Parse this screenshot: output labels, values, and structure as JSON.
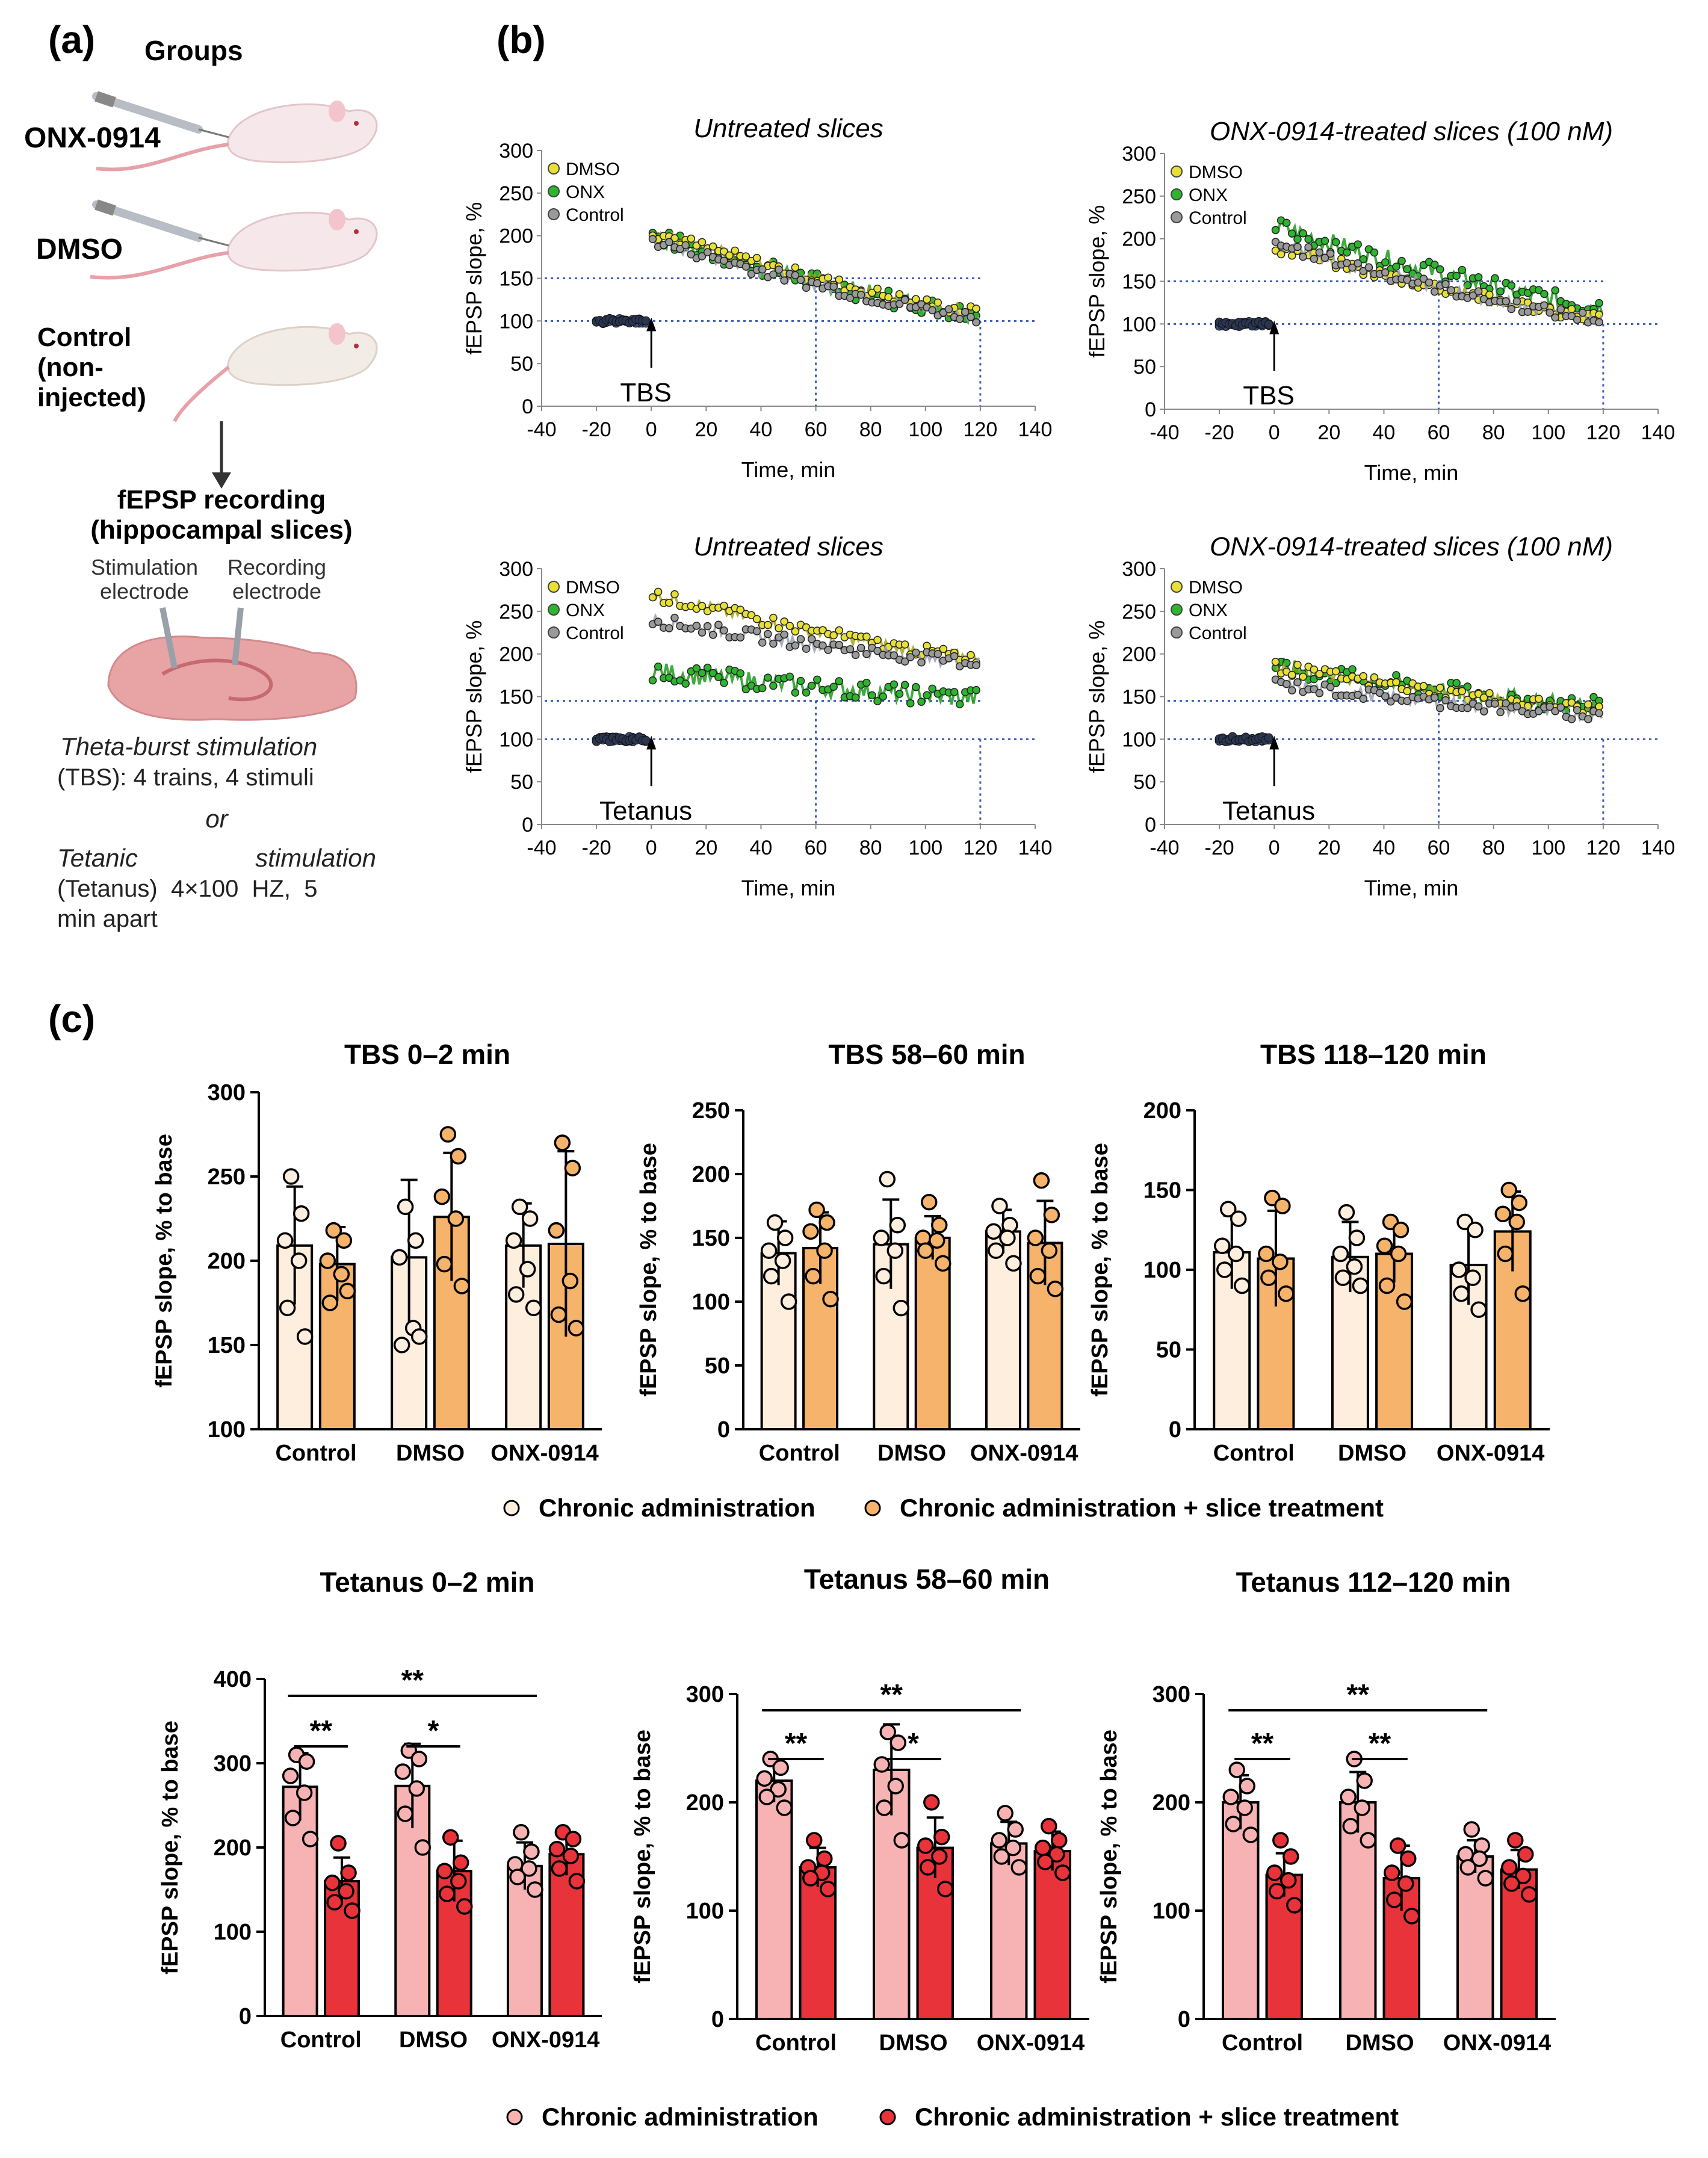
{
  "panels": {
    "a": "(a)",
    "b": "(b)",
    "c": "(c)"
  },
  "panel_a": {
    "groups_title": "Groups",
    "group_onx": "ONX-0914",
    "group_dmso": "DMSO",
    "group_control_1": "Control",
    "group_control_2": "(non-",
    "group_control_3": "injected)",
    "recording_1": "fEPSP recording",
    "recording_2": "(hippocampal slices)",
    "stim_1": "Stimulation",
    "stim_2": "electrode",
    "rec_1": "Recording",
    "rec_2": "electrode",
    "tbs_1": "Theta-burst stimulation",
    "tbs_2": "(TBS): 4 trains, 4 stimuli",
    "or": "or",
    "tet_1a": "Tetanic",
    "tet_1b": "stimulation",
    "tet_2": "(Tetanus)  4×100  HZ,  5",
    "tet_3": "min apart"
  },
  "panel_b": {
    "xlabel": "Time, min",
    "ylabel": "fEPSP slope, %",
    "xticks": [
      "-40",
      "-20",
      "0",
      "20",
      "40",
      "60",
      "80",
      "100",
      "120",
      "140"
    ],
    "yticks": [
      "0",
      "50",
      "100",
      "150",
      "200",
      "250",
      "300"
    ],
    "legend": [
      "DMSO",
      "ONX",
      "Control"
    ],
    "legend_colors": [
      "#e8e034",
      "#2db52d",
      "#9a9a9a"
    ],
    "series_colors": [
      "#a6a61e",
      "#1f9a1f",
      "#9aa0b0"
    ],
    "plots": [
      {
        "title": "Untreated slices",
        "stim": "TBS"
      },
      {
        "title": "ONX-0914-treated slices (100 nM)",
        "stim": "TBS"
      },
      {
        "title": "Untreated slices",
        "stim": "Tetanus"
      },
      {
        "title": "ONX-0914-treated slices (100 nM)",
        "stim": "Tetanus"
      }
    ]
  },
  "panel_c": {
    "ylabel": "fEPSP slope, % to base",
    "legend_tbs": [
      "Chronic administration",
      "Chronic administration + slice treatment"
    ],
    "legend_tet": [
      "Chronic administration",
      "Chronic administration + slice treatment"
    ],
    "colors": {
      "tbs_light": "#fdeedd",
      "tbs_dark": "#f5b36b",
      "tet_light": "#f7b3b3",
      "tet_dark": "#e8333a"
    }
  },
  "chart_data": [
    {
      "type": "line",
      "title": "Untreated slices",
      "xlabel": "Time, min",
      "ylabel": "fEPSP slope, %",
      "xlim": [
        -40,
        140
      ],
      "ylim": [
        0,
        300
      ],
      "annotation": "TBS",
      "series": [
        {
          "name": "DMSO",
          "baseline": 100,
          "start": 205,
          "end": 110
        },
        {
          "name": "ONX",
          "baseline": 100,
          "start": 200,
          "end": 108
        },
        {
          "name": "Control",
          "baseline": 100,
          "start": 195,
          "end": 105
        }
      ],
      "reference_lines": {
        "y": [
          100,
          150
        ],
        "x": [
          60,
          120
        ]
      }
    },
    {
      "type": "line",
      "title": "ONX-0914-treated slices (100 nM)",
      "xlabel": "Time, min",
      "ylabel": "fEPSP slope, %",
      "xlim": [
        -40,
        140
      ],
      "ylim": [
        0,
        300
      ],
      "annotation": "TBS",
      "series": [
        {
          "name": "DMSO",
          "baseline": 100,
          "start": 190,
          "end": 108
        },
        {
          "name": "ONX",
          "baseline": 100,
          "start": 215,
          "end": 120
        },
        {
          "name": "Control",
          "baseline": 100,
          "start": 195,
          "end": 105
        }
      ],
      "reference_lines": {
        "y": [
          100,
          150
        ],
        "x": [
          60,
          120
        ]
      }
    },
    {
      "type": "line",
      "title": "Untreated slices",
      "xlabel": "Time, min",
      "ylabel": "fEPSP slope, %",
      "xlim": [
        -40,
        140
      ],
      "ylim": [
        0,
        300
      ],
      "annotation": "Tetanus",
      "series": [
        {
          "name": "DMSO",
          "baseline": 100,
          "start": 270,
          "end": 195
        },
        {
          "name": "ONX",
          "baseline": 100,
          "start": 180,
          "end": 148
        },
        {
          "name": "Control",
          "baseline": 100,
          "start": 240,
          "end": 190
        }
      ],
      "reference_lines": {
        "y": [
          100,
          145
        ],
        "x": [
          60,
          120
        ]
      }
    },
    {
      "type": "line",
      "title": "ONX-0914-treated slices (100 nM)",
      "xlabel": "Time, min",
      "ylabel": "fEPSP slope, %",
      "xlim": [
        -40,
        140
      ],
      "ylim": [
        0,
        300
      ],
      "annotation": "Tetanus",
      "series": [
        {
          "name": "DMSO",
          "baseline": 100,
          "start": 185,
          "end": 135
        },
        {
          "name": "ONX",
          "baseline": 100,
          "start": 185,
          "end": 138
        },
        {
          "name": "Control",
          "baseline": 100,
          "start": 165,
          "end": 128
        }
      ],
      "reference_lines": {
        "y": [
          100,
          145
        ],
        "x": [
          60,
          120
        ]
      }
    },
    {
      "type": "bar",
      "title": "TBS 0–2 min",
      "ylabel": "fEPSP slope, % to base",
      "ylim": [
        100,
        300
      ],
      "yticks": [
        100,
        150,
        200,
        250,
        300
      ],
      "categories": [
        "Control",
        "DMSO",
        "ONX-0914"
      ],
      "series": [
        {
          "name": "Chronic administration",
          "values": [
            209,
            202,
            209
          ],
          "sd": [
            35,
            46,
            25
          ],
          "points": [
            [
              250,
              228,
              212,
              200,
              172,
              155
            ],
            [
              232,
              212,
              202,
              160,
              150,
              155
            ],
            [
              232,
              225,
              212,
              195,
              180,
              172
            ]
          ]
        },
        {
          "name": "Chronic administration + slice treatment",
          "values": [
            198,
            226,
            210
          ],
          "sd": [
            22,
            38,
            55
          ],
          "points": [
            [
              218,
              212,
              200,
              192,
              175,
              182
            ],
            [
              275,
              262,
              238,
              225,
              198,
              185
            ],
            [
              270,
              255,
              218,
              188,
              168,
              160
            ]
          ]
        }
      ],
      "significance": []
    },
    {
      "type": "bar",
      "title": "TBS 58–60 min",
      "ylabel": "fEPSP slope, % to base",
      "ylim": [
        0,
        250
      ],
      "yticks": [
        0,
        50,
        100,
        150,
        200,
        250
      ],
      "categories": [
        "Control",
        "DMSO",
        "ONX-0914"
      ],
      "series": [
        {
          "name": "Chronic administration",
          "values": [
            138,
            145,
            155
          ],
          "sd": [
            25,
            35,
            17
          ],
          "points": [
            [
              162,
              150,
              140,
              132,
              120,
              100
            ],
            [
              196,
              160,
              150,
              140,
              120,
              95
            ],
            [
              175,
              160,
              155,
              150,
              140,
              130
            ]
          ]
        },
        {
          "name": "Chronic administration + slice treatment",
          "values": [
            142,
            150,
            146
          ],
          "sd": [
            28,
            17,
            33
          ],
          "points": [
            [
              172,
              162,
              155,
              140,
              120,
              102
            ],
            [
              178,
              160,
              150,
              148,
              140,
              130
            ],
            [
              195,
              168,
              150,
              140,
              120,
              110
            ]
          ]
        }
      ],
      "significance": []
    },
    {
      "type": "bar",
      "title": "TBS 118–120 min",
      "ylabel": "fEPSP slope, % to base",
      "ylim": [
        0,
        200
      ],
      "yticks": [
        0,
        50,
        100,
        150,
        200
      ],
      "categories": [
        "Control",
        "DMSO",
        "ONX-0914"
      ],
      "series": [
        {
          "name": "Chronic administration",
          "values": [
            111,
            108,
            103
          ],
          "sd": [
            23,
            22,
            25
          ],
          "points": [
            [
              138,
              132,
              115,
              110,
              100,
              90
            ],
            [
              136,
              120,
              110,
              102,
              95,
              90
            ],
            [
              130,
              125,
              100,
              95,
              85,
              75
            ]
          ]
        },
        {
          "name": "Chronic administration + slice treatment",
          "values": [
            107,
            110,
            124
          ],
          "sd": [
            30,
            18,
            25
          ],
          "points": [
            [
              145,
              140,
              110,
              105,
              95,
              85
            ],
            [
              130,
              125,
              115,
              110,
              90,
              80
            ],
            [
              150,
              142,
              135,
              130,
              110,
              85
            ]
          ]
        }
      ],
      "significance": []
    },
    {
      "type": "bar",
      "title": "Tetanus 0–2 min",
      "ylabel": "fEPSP slope, % to base",
      "ylim": [
        0,
        400
      ],
      "yticks": [
        0,
        100,
        200,
        300,
        400
      ],
      "categories": [
        "Control",
        "DMSO",
        "ONX-0914"
      ],
      "series": [
        {
          "name": "Chronic administration",
          "values": [
            272,
            273,
            178
          ],
          "sd": [
            40,
            50,
            28
          ],
          "points": [
            [
              310,
              302,
              285,
              265,
              235,
              210
            ],
            [
              315,
              305,
              290,
              270,
              240,
              200
            ],
            [
              218,
              195,
              180,
              175,
              165,
              150
            ]
          ]
        },
        {
          "name": "Chronic administration + slice treatment",
          "values": [
            160,
            172,
            192
          ],
          "sd": [
            28,
            36,
            25
          ],
          "points": [
            [
              205,
              170,
              158,
              148,
              135,
              125
            ],
            [
              212,
              182,
              172,
              160,
              145,
              130
            ],
            [
              218,
              210,
              198,
              190,
              175,
              160
            ]
          ]
        }
      ],
      "significance": [
        {
          "pair": "Control chronic vs Control slice",
          "label": "**"
        },
        {
          "pair": "DMSO chronic vs DMSO slice",
          "label": "*"
        },
        {
          "pair": "Control chronic vs ONX-0914 chronic",
          "label": "**"
        }
      ]
    },
    {
      "type": "bar",
      "title": "Tetanus 58–60 min",
      "ylabel": "fEPSP slope, % to base",
      "ylim": [
        0,
        300
      ],
      "yticks": [
        0,
        100,
        200,
        300
      ],
      "categories": [
        "Control",
        "DMSO",
        "ONX-0914"
      ],
      "series": [
        {
          "name": "Chronic administration",
          "values": [
            220,
            230,
            162
          ],
          "sd": [
            20,
            42,
            20
          ],
          "points": [
            [
              240,
              232,
              222,
              212,
              205,
              195
            ],
            [
              265,
              255,
              235,
              215,
              195,
              165
            ],
            [
              190,
              175,
              165,
              158,
              150,
              140
            ]
          ]
        },
        {
          "name": "Chronic administration + slice treatment",
          "values": [
            140,
            158,
            155
          ],
          "sd": [
            18,
            28,
            18
          ],
          "points": [
            [
              165,
              148,
              140,
              135,
              130,
              120
            ],
            [
              200,
              168,
              160,
              150,
              140,
              120
            ],
            [
              178,
              165,
              158,
              152,
              145,
              135
            ]
          ]
        }
      ],
      "significance": [
        {
          "pair": "Control chronic vs Control slice",
          "label": "**"
        },
        {
          "pair": "DMSO chronic vs DMSO slice",
          "label": "*"
        },
        {
          "pair": "Control chronic vs ONX-0914 chronic",
          "label": "**"
        }
      ]
    },
    {
      "type": "bar",
      "title": "Tetanus 112–120 min",
      "ylabel": "fEPSP slope, % to base",
      "ylim": [
        0,
        300
      ],
      "yticks": [
        0,
        100,
        200,
        300
      ],
      "categories": [
        "Control",
        "DMSO",
        "ONX-0914"
      ],
      "series": [
        {
          "name": "Chronic administration",
          "values": [
            200,
            200,
            150
          ],
          "sd": [
            25,
            28,
            15
          ],
          "points": [
            [
              230,
              215,
              205,
              195,
              180,
              170
            ],
            [
              240,
              220,
              205,
              195,
              178,
              165
            ],
            [
              175,
              160,
              152,
              148,
              140,
              130
            ]
          ]
        },
        {
          "name": "Chronic administration + slice treatment",
          "values": [
            133,
            130,
            138
          ],
          "sd": [
            20,
            30,
            18
          ],
          "points": [
            [
              165,
              150,
              135,
              128,
              118,
              105
            ],
            [
              160,
              148,
              135,
              125,
              110,
              95
            ],
            [
              165,
              152,
              140,
              132,
              125,
              115
            ]
          ]
        }
      ],
      "significance": [
        {
          "pair": "Control chronic vs Control slice",
          "label": "**"
        },
        {
          "pair": "DMSO chronic vs DMSO slice",
          "label": "**"
        },
        {
          "pair": "Control chronic vs ONX-0914 chronic",
          "label": "**"
        }
      ]
    }
  ]
}
